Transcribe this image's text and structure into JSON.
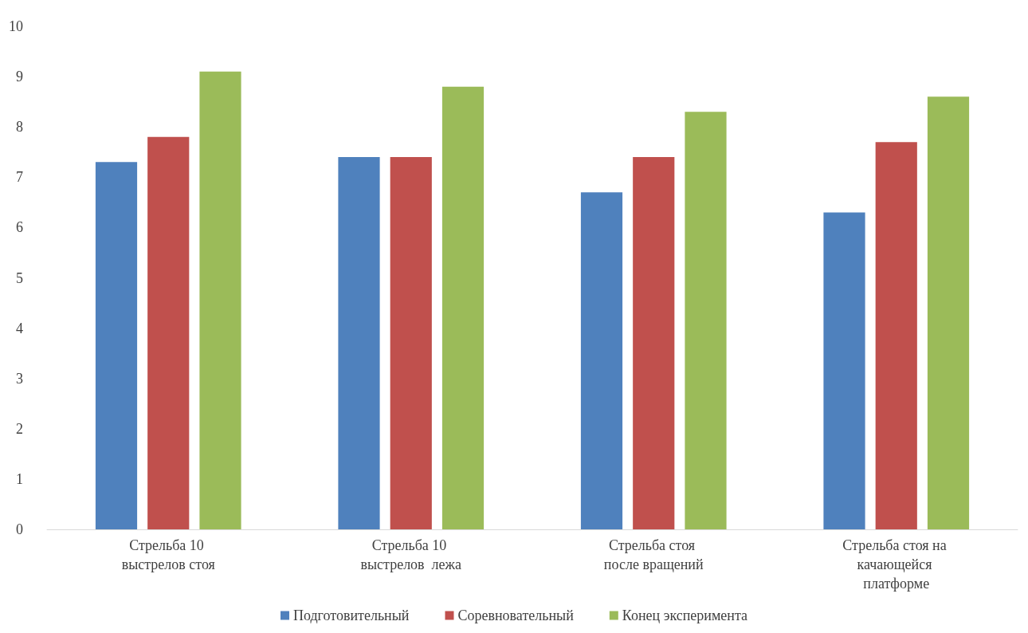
{
  "chart_data": {
    "type": "bar",
    "categories": [
      "Стрельба 10 выстрелов стоя",
      "Стрельба 10 выстрелов  лежа",
      "Стрельба стоя после вращений",
      "Стрельба стоя на качающейся платформе"
    ],
    "series": [
      {
        "name": "Подготовительный",
        "color": "#4f81bd",
        "values": [
          7.3,
          7.4,
          6.7,
          6.3
        ]
      },
      {
        "name": "Соревновательный",
        "color": "#c0504d",
        "values": [
          7.8,
          7.4,
          7.4,
          7.7
        ]
      },
      {
        "name": "Конец эксперимента",
        "color": "#9bbb59",
        "values": [
          9.1,
          8.8,
          8.3,
          8.6
        ]
      }
    ],
    "ylim": [
      0,
      10
    ],
    "yticks": [
      0,
      1,
      2,
      3,
      4,
      5,
      6,
      7,
      8,
      9,
      10
    ],
    "grid": false,
    "legend": "bottom"
  }
}
